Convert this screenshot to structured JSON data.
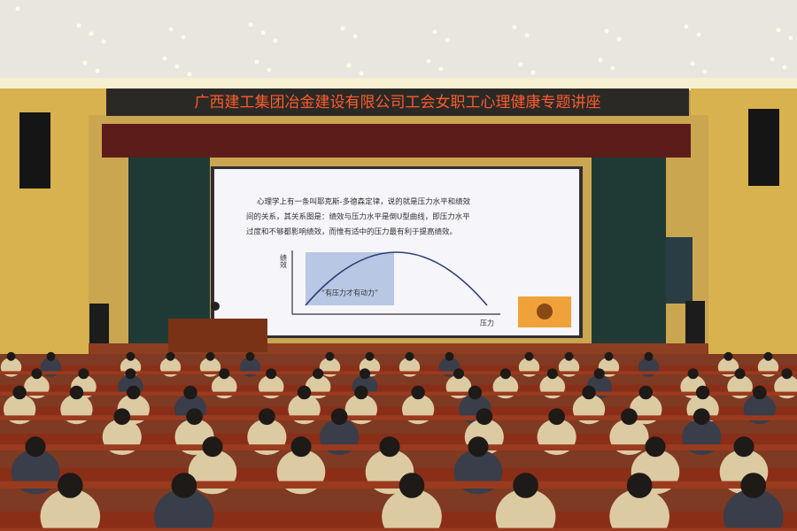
{
  "banner": {
    "title": "广西建工集团冶金建设有限公司工会女职工心理健康专题讲座"
  },
  "slide": {
    "lines": [
      "心理学上有一条叫耶克斯-多德森定律，说的就是压力水平和绩效",
      "间的关系，其关系图是：绩效与压力水平是倒U型曲线，即压力水平",
      "过度和不够都影响绩效，而惟有适中的压力最有利于提高绩效。"
    ],
    "y_axis_label": "绩效",
    "x_axis_label": "压力",
    "curve_label": "“有压力才有动力”"
  }
}
